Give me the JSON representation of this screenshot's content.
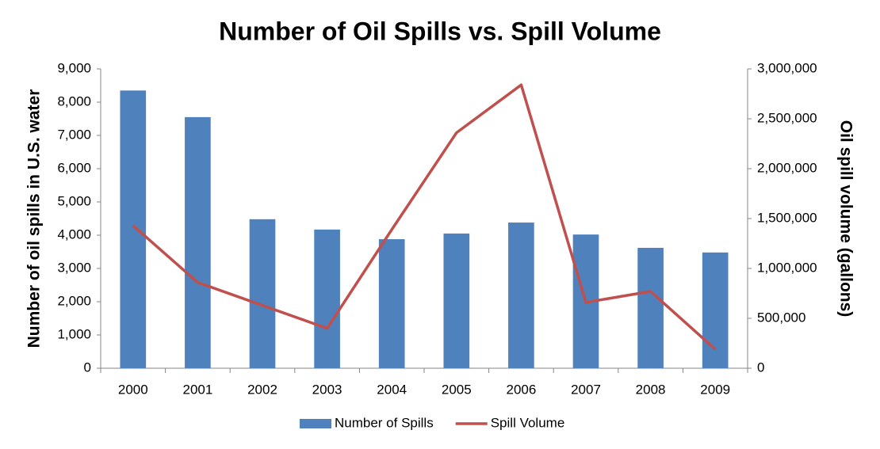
{
  "chart_data": {
    "type": "bar",
    "title": "Number of Oil Spills vs. Spill Volume",
    "y_label": "Number of oil spills in U.S. water",
    "y2_label": "Oil spill volume (gallons)",
    "categories": [
      "2000",
      "2001",
      "2002",
      "2003",
      "2004",
      "2005",
      "2006",
      "2007",
      "2008",
      "2009"
    ],
    "series": [
      {
        "name": "Number of Spills",
        "type": "bar",
        "color": "#4f81bd",
        "axis": "y",
        "values": [
          8350,
          7550,
          4480,
          4170,
          3880,
          4050,
          4380,
          4020,
          3620,
          3480
        ]
      },
      {
        "name": "Spill Volume",
        "type": "line",
        "color": "#c0504d",
        "axis": "y2",
        "values": [
          1430000,
          860000,
          630000,
          400000,
          1390000,
          2360000,
          2840000,
          660000,
          770000,
          190000
        ]
      }
    ],
    "ylim": [
      0,
      9000
    ],
    "yticks": [
      0,
      {
        "value": 1000,
        "label": "1,000"
      },
      {
        "value": 2000,
        "label": "2,000"
      },
      {
        "value": 3000,
        "label": "3,000"
      },
      {
        "value": 4000,
        "label": "4,000"
      },
      {
        "value": 5000,
        "label": "5,000"
      },
      {
        "value": 6000,
        "label": "6,000"
      },
      {
        "value": 7000,
        "label": "7,000"
      },
      {
        "value": 8000,
        "label": "8,000"
      },
      {
        "value": 9000,
        "label": "9,000"
      }
    ],
    "y2lim": [
      0,
      3000000
    ],
    "y2ticks": [
      0,
      {
        "value": 500000,
        "label": "500,000"
      },
      {
        "value": 1000000,
        "label": "1,000,000"
      },
      {
        "value": 1500000,
        "label": "1,500,000"
      },
      {
        "value": 2000000,
        "label": "2,000,000"
      },
      {
        "value": 2500000,
        "label": "2,500,000"
      },
      {
        "value": 3000000,
        "label": "3,000,000"
      }
    ],
    "legend": "bottom",
    "grid": false
  }
}
